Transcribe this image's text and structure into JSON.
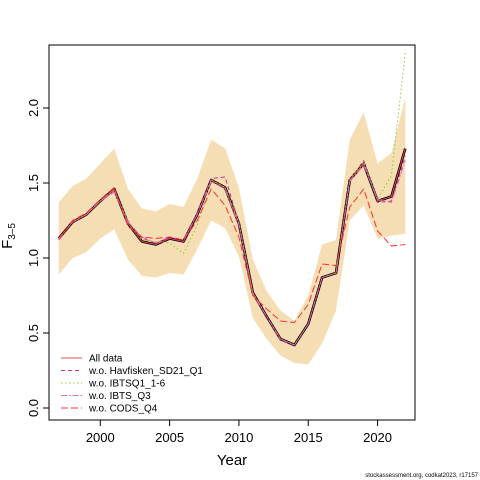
{
  "chart_data": {
    "type": "line",
    "xlabel": "Year",
    "ylabel": "F",
    "ylabel_sub": "3–5",
    "xlim": [
      1996.3,
      2022.7
    ],
    "ylim": [
      -0.08,
      2.42
    ],
    "x_ticks": [
      2000,
      2005,
      2010,
      2015,
      2020
    ],
    "x_tick_labels": [
      "2000",
      "2005",
      "2010",
      "2015",
      "2020"
    ],
    "y_ticks": [
      0.0,
      0.5,
      1.0,
      1.5,
      2.0
    ],
    "y_tick_labels": [
      "0.0",
      "0.5",
      "1.0",
      "1.5",
      "2.0"
    ],
    "x": [
      1997,
      1998,
      1999,
      2000,
      2001,
      2002,
      2003,
      2004,
      2005,
      2006,
      2007,
      2008,
      2009,
      2010,
      2011,
      2012,
      2013,
      2014,
      2015,
      2016,
      2017,
      2018,
      2019,
      2020,
      2021,
      2022
    ],
    "band": {
      "color": "#f5deb3",
      "upper": [
        1.37,
        1.48,
        1.53,
        1.63,
        1.73,
        1.46,
        1.33,
        1.31,
        1.36,
        1.34,
        1.53,
        1.79,
        1.73,
        1.47,
        0.99,
        0.78,
        0.65,
        0.58,
        0.75,
        1.09,
        1.12,
        1.79,
        1.97,
        1.63,
        1.7,
        2.07
      ],
      "lower": [
        0.89,
        1.0,
        1.04,
        1.13,
        1.19,
        0.99,
        0.88,
        0.87,
        0.9,
        0.89,
        1.06,
        1.25,
        1.2,
        1.01,
        0.6,
        0.46,
        0.35,
        0.3,
        0.29,
        0.43,
        0.65,
        1.25,
        1.35,
        1.13,
        1.15,
        1.16
      ]
    },
    "series": [
      {
        "values": [
          1.13,
          1.24,
          1.29,
          1.38,
          1.46,
          1.23,
          1.11,
          1.09,
          1.13,
          1.11,
          1.29,
          1.52,
          1.47,
          1.23,
          0.77,
          0.61,
          0.46,
          0.42,
          0.56,
          0.87,
          0.9,
          1.52,
          1.63,
          1.38,
          1.41,
          1.73
        ],
        "color": "#000000",
        "dash": "",
        "width": 2.6,
        "layer": "base"
      },
      {
        "values": [
          1.13,
          1.24,
          1.29,
          1.38,
          1.46,
          1.23,
          1.11,
          1.09,
          1.13,
          1.11,
          1.29,
          1.52,
          1.47,
          1.23,
          0.77,
          0.61,
          0.46,
          0.42,
          0.56,
          0.87,
          0.9,
          1.52,
          1.63,
          1.38,
          1.41,
          1.73
        ],
        "color": "#e05050",
        "dash": "",
        "width": 1.0,
        "layer": "front"
      },
      {
        "values": [
          1.13,
          1.24,
          1.29,
          1.38,
          1.45,
          1.24,
          1.13,
          1.1,
          1.13,
          1.11,
          1.3,
          1.53,
          1.54,
          1.23,
          0.76,
          0.61,
          0.45,
          0.42,
          0.56,
          0.87,
          0.9,
          1.52,
          1.65,
          1.37,
          1.38,
          1.68
        ],
        "color": "#cc2a8e",
        "dash": "4,3",
        "width": 1.0,
        "layer": "front"
      },
      {
        "values": [
          1.13,
          1.24,
          1.29,
          1.38,
          1.45,
          1.25,
          1.12,
          1.11,
          1.1,
          1.03,
          1.22,
          1.52,
          1.47,
          1.24,
          0.77,
          0.61,
          0.46,
          0.42,
          0.56,
          0.87,
          0.9,
          1.53,
          1.64,
          1.39,
          1.55,
          2.37
        ],
        "color": "#8acb2a",
        "dash": "1.5,2.5",
        "width": 1.0,
        "layer": "front"
      },
      {
        "values": [
          1.13,
          1.24,
          1.29,
          1.38,
          1.44,
          1.24,
          1.14,
          1.1,
          1.14,
          1.12,
          1.29,
          1.51,
          1.46,
          1.22,
          0.76,
          0.61,
          0.46,
          0.42,
          0.56,
          0.87,
          0.9,
          1.51,
          1.62,
          1.39,
          1.37,
          1.65
        ],
        "color": "#e066c0",
        "dash": "6,2,1.5,2",
        "width": 1.0,
        "layer": "front"
      },
      {
        "values": [
          1.12,
          1.25,
          1.3,
          1.39,
          1.47,
          1.21,
          1.14,
          1.13,
          1.14,
          1.12,
          1.25,
          1.46,
          1.35,
          1.14,
          0.75,
          0.66,
          0.58,
          0.57,
          0.69,
          0.96,
          0.95,
          1.34,
          1.46,
          1.18,
          1.08,
          1.09
        ],
        "color": "#ff3030",
        "dash": "7,3",
        "width": 1.0,
        "layer": "front"
      }
    ],
    "legend": {
      "position": "bottom-left",
      "entries": [
        {
          "label": "All data",
          "color": "#e05050",
          "dash": ""
        },
        {
          "label": "w.o. Havfisken_SD21_Q1",
          "color": "#cc2a8e",
          "dash": "4,3"
        },
        {
          "label": "w.o. IBTSQ1_1-6",
          "color": "#8acb2a",
          "dash": "1.5,2.5"
        },
        {
          "label": "w.o. IBTS_Q3",
          "color": "#e066c0",
          "dash": "6,2,1.5,2"
        },
        {
          "label": "w.o. CODS_Q4",
          "color": "#ff3030",
          "dash": "7,3"
        }
      ]
    }
  },
  "footer": "stockassessment.org, codkat2023, r17157"
}
